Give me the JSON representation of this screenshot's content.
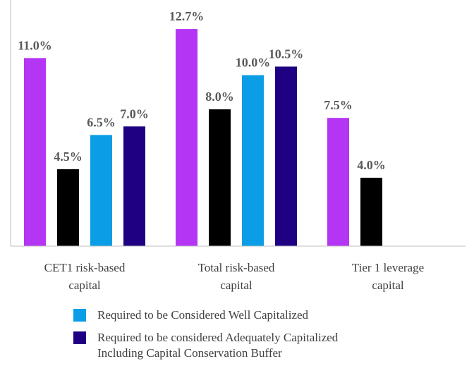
{
  "chart_data": {
    "type": "bar",
    "categories": [
      [
        "CET1 risk-based",
        "capital"
      ],
      [
        "Total risk-based",
        "capital"
      ],
      [
        "Tier 1 leverage",
        "capital"
      ]
    ],
    "series": [
      {
        "name": "",
        "color": "#b535f5",
        "values": [
          11.0,
          12.7,
          7.5
        ],
        "labels": [
          "11.0%",
          "12.7%",
          "7.5%"
        ]
      },
      {
        "name": "",
        "color": "#000000",
        "values": [
          4.5,
          8.0,
          4.0
        ],
        "labels": [
          "4.5%",
          "8.0%",
          "4.0%"
        ]
      },
      {
        "name": "Required to be Considered Well Capitalized",
        "color": "#0b9ee6",
        "values": [
          6.5,
          10.0,
          null
        ],
        "labels": [
          "6.5%",
          "10.0%",
          ""
        ]
      },
      {
        "name": "Required to be considered Adequately Capitalized Including Capital Conservation Buffer",
        "color": "#1f0083",
        "values": [
          7.0,
          10.5,
          null
        ],
        "labels": [
          "7.0%",
          "10.5%",
          ""
        ]
      }
    ],
    "legend": [
      {
        "label": "Required to be Considered Well Capitalized",
        "color": "#0b9ee6"
      },
      {
        "label_lines": [
          "Required to be considered Adequately Capitalized",
          "Including Capital Conservation Buffer"
        ],
        "color": "#1f0083"
      }
    ],
    "ylim": [
      0,
      13.9
    ],
    "grid": false
  }
}
